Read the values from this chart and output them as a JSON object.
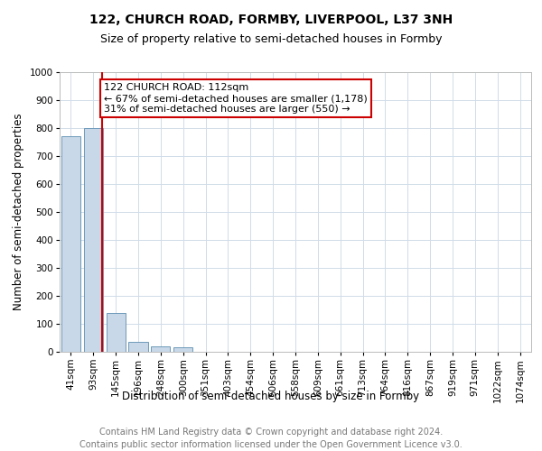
{
  "title": "122, CHURCH ROAD, FORMBY, LIVERPOOL, L37 3NH",
  "subtitle": "Size of property relative to semi-detached houses in Formby",
  "xlabel": "Distribution of semi-detached houses by size in Formby",
  "ylabel": "Number of semi-detached properties",
  "footer_line1": "Contains HM Land Registry data © Crown copyright and database right 2024.",
  "footer_line2": "Contains public sector information licensed under the Open Government Licence v3.0.",
  "property_label": "122 CHURCH ROAD: 112sqm",
  "annotation_line1": "← 67% of semi-detached houses are smaller (1,178)",
  "annotation_line2": "31% of semi-detached houses are larger (550) →",
  "bin_labels": [
    "41sqm",
    "93sqm",
    "145sqm",
    "196sqm",
    "248sqm",
    "300sqm",
    "351sqm",
    "403sqm",
    "454sqm",
    "506sqm",
    "558sqm",
    "609sqm",
    "661sqm",
    "713sqm",
    "764sqm",
    "816sqm",
    "867sqm",
    "919sqm",
    "971sqm",
    "1022sqm",
    "1074sqm"
  ],
  "bar_values": [
    770,
    800,
    140,
    35,
    20,
    15,
    0,
    0,
    0,
    0,
    0,
    0,
    0,
    0,
    0,
    0,
    0,
    0,
    0,
    0,
    0
  ],
  "bar_color": "#c8d8e8",
  "bar_edge_color": "#5b8db0",
  "red_line_bin_index": 1.38,
  "ylim": [
    0,
    1000
  ],
  "yticks": [
    0,
    100,
    200,
    300,
    400,
    500,
    600,
    700,
    800,
    900,
    1000
  ],
  "grid_color": "#d0dce8",
  "annotation_box_color": "#cc0000",
  "title_fontsize": 10,
  "subtitle_fontsize": 9,
  "axis_label_fontsize": 8.5,
  "tick_fontsize": 7.5,
  "footer_fontsize": 7,
  "annotation_fontsize": 8
}
